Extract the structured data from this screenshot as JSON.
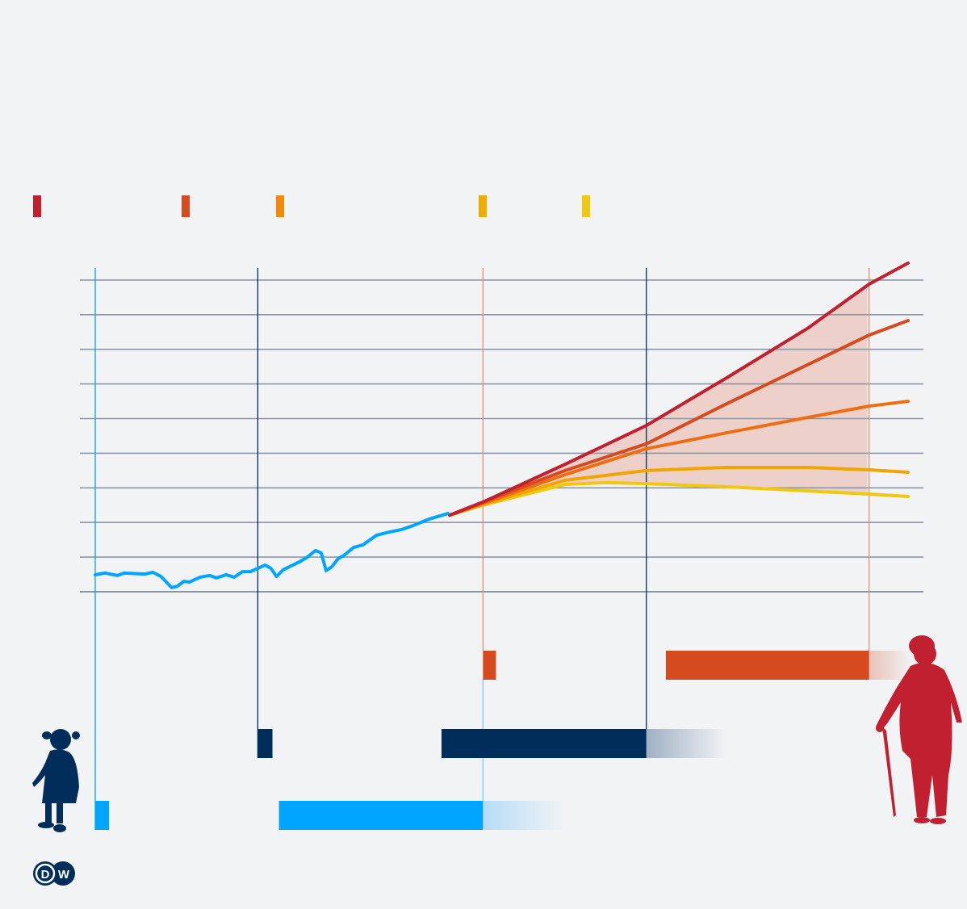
{
  "chart_data": {
    "type": "line",
    "title": "",
    "xlabel": "",
    "ylabel": "",
    "xlim": [
      0,
      100
    ],
    "ylim": [
      0,
      9
    ],
    "grid": true,
    "gridlines_y": [
      0,
      1,
      2,
      3,
      4,
      5,
      6,
      7,
      8,
      9
    ],
    "legend": {
      "placement": "top-left",
      "swatches": [
        "#c0202f",
        "#d64a20",
        "#ef8a0a",
        "#f1aa00",
        "#f1c80f"
      ]
    },
    "historical": {
      "color": "#00a5ff",
      "x": [
        0,
        1.2,
        2.7,
        3.6,
        6.1,
        7.1,
        8.1,
        9.4,
        10.1,
        10.9,
        11.6,
        12.9,
        14.1,
        14.9,
        16.1,
        17.1,
        18.1,
        19.1,
        20.9,
        21.6,
        22.3,
        23.1,
        25.1,
        26.1,
        27.1,
        27.8,
        28.4,
        29.1,
        29.9,
        30.6,
        31.8,
        32.9,
        34.6,
        36.1,
        37.6,
        39.1,
        41.1,
        43.4
      ],
      "y": [
        0.49,
        0.54,
        0.47,
        0.54,
        0.51,
        0.56,
        0.44,
        0.12,
        0.16,
        0.3,
        0.28,
        0.42,
        0.47,
        0.4,
        0.49,
        0.42,
        0.58,
        0.58,
        0.77,
        0.68,
        0.44,
        0.63,
        0.86,
        1.0,
        1.19,
        1.12,
        0.61,
        0.72,
        0.96,
        1.05,
        1.28,
        1.35,
        1.63,
        1.72,
        1.79,
        1.91,
        2.1,
        2.26
      ]
    },
    "series": [
      {
        "color": "#c0202f",
        "x": [
          43.6,
          47.7,
          57.8,
          67.8,
          77.7,
          87.6,
          95.2,
          100
        ],
        "y": [
          2.21,
          2.59,
          3.68,
          4.8,
          6.18,
          7.6,
          8.88,
          9.49
        ]
      },
      {
        "color": "#d64a20",
        "x": [
          43.6,
          47.7,
          57.8,
          67.8,
          77.7,
          87.6,
          95.2,
          100
        ],
        "y": [
          2.21,
          2.59,
          3.5,
          4.27,
          5.43,
          6.55,
          7.41,
          7.83
        ]
      },
      {
        "color": "#ef6d10",
        "x": [
          43.6,
          47.7,
          57.8,
          67.8,
          77.7,
          87.6,
          95.2,
          100
        ],
        "y": [
          2.21,
          2.55,
          3.38,
          4.13,
          4.59,
          5.03,
          5.36,
          5.5
        ]
      },
      {
        "color": "#f1a500",
        "x": [
          43.6,
          47.7,
          57.8,
          67.8,
          77.7,
          87.6,
          95.2,
          100
        ],
        "y": [
          2.21,
          2.52,
          3.22,
          3.5,
          3.59,
          3.59,
          3.52,
          3.45
        ]
      },
      {
        "color": "#f1c80f",
        "x": [
          43.6,
          47.7,
          57.8,
          62.8,
          67.8,
          77.7,
          87.6,
          95.2,
          100
        ],
        "y": [
          2.21,
          2.5,
          3.1,
          3.15,
          3.12,
          3.03,
          2.91,
          2.82,
          2.75
        ]
      }
    ],
    "range_band": {
      "color": "#ecd0c9",
      "upper_series": 0,
      "lower_series": 4,
      "x_end": 95.2
    },
    "markers_x": [
      {
        "x": 0,
        "color": "#00a5ff"
      },
      {
        "x": 20,
        "color": "#002d5a"
      },
      {
        "x": 47.7,
        "color": "#e0907a"
      },
      {
        "x": 67.8,
        "color": "#002d5a"
      },
      {
        "x": 95.2,
        "color": "#e0907a"
      }
    ],
    "timeline_bars": [
      {
        "color": "#d64a20",
        "segments": [
          [
            47.7,
            49.3
          ],
          [
            70.2,
            95.2
          ]
        ],
        "fade": [
          95.2,
          100.5
        ]
      },
      {
        "color": "#002d5a",
        "segments": [
          [
            20,
            21.8
          ],
          [
            42.6,
            67.8
          ]
        ],
        "fade": [
          67.8,
          77.7
        ]
      },
      {
        "color": "#00a5ff",
        "segments": [
          [
            0,
            1.7
          ],
          [
            22.6,
            47.7
          ]
        ],
        "fade": [
          47.7,
          57.8
        ]
      }
    ]
  },
  "icons": {
    "child": "child-silhouette",
    "elderly": "elderly-person-silhouette",
    "logo": "dw-logo"
  },
  "logo": {
    "text": "DW"
  }
}
